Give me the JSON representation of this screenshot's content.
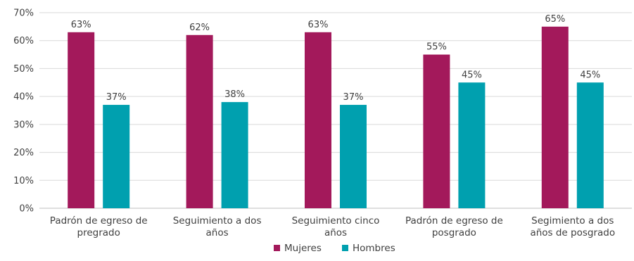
{
  "chart_data": {
    "type": "bar",
    "categories": [
      [
        "Padrón de egreso de",
        "pregrado"
      ],
      [
        "Seguimiento a dos",
        "años"
      ],
      [
        "Seguimiento cinco",
        "años"
      ],
      [
        "Padrón de egreso de",
        "posgrado"
      ],
      [
        "Segimiento a dos",
        "años de posgrado"
      ]
    ],
    "series": [
      {
        "name": "Mujeres",
        "values": [
          63,
          62,
          63,
          55,
          65
        ],
        "labels": [
          "63%",
          "62%",
          "63%",
          "55%",
          "65%"
        ],
        "color": "#A3195B"
      },
      {
        "name": "Hombres",
        "values": [
          37,
          38,
          37,
          45,
          45
        ],
        "labels": [
          "37%",
          "38%",
          "37%",
          "45%",
          "45%"
        ],
        "color": "#00A0AF"
      }
    ],
    "ylim": [
      0,
      70
    ],
    "yticks": [
      0,
      10,
      20,
      30,
      40,
      50,
      60,
      70
    ],
    "ytick_labels": [
      "0%",
      "10%",
      "20%",
      "30%",
      "40%",
      "50%",
      "60%",
      "70%"
    ],
    "grid": true,
    "legend_position": "bottom",
    "title": "",
    "xlabel": "",
    "ylabel": ""
  }
}
